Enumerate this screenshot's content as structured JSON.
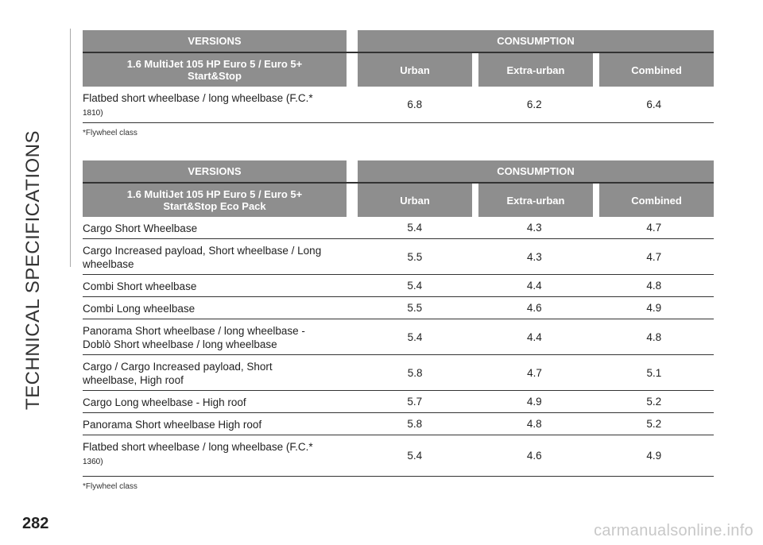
{
  "side_title": "TECHNICAL SPECIFICATIONS",
  "page_number": "282",
  "watermark": "carmanualsonline.info",
  "table1": {
    "versions_label": "VERSIONS",
    "consumption_label": "CONSUMPTION",
    "engine_label": "1.6 MultiJet 105 HP Euro 5 / Euro 5+ Start&Stop",
    "col_urban": "Urban",
    "col_extra": "Extra-urban",
    "col_combined": "Combined",
    "rows": [
      {
        "label": "Flatbed short wheelbase / long wheelbase (F.C.*",
        "label_small": "1810)",
        "urban": "6.8",
        "extra": "6.2",
        "combined": "6.4"
      }
    ],
    "footnote": "*Flywheel class"
  },
  "table2": {
    "versions_label": "VERSIONS",
    "consumption_label": "CONSUMPTION",
    "engine_label": "1.6 MultiJet 105 HP Euro 5 / Euro 5+ Start&Stop Eco Pack",
    "col_urban": "Urban",
    "col_extra": "Extra-urban",
    "col_combined": "Combined",
    "rows": [
      {
        "label": "Cargo Short Wheelbase",
        "urban": "5.4",
        "extra": "4.3",
        "combined": "4.7"
      },
      {
        "label": "Cargo Increased payload, Short wheelbase / Long wheelbase",
        "urban": "5.5",
        "extra": "4.3",
        "combined": "4.7"
      },
      {
        "label": "Combi Short wheelbase",
        "urban": "5.4",
        "extra": "4.4",
        "combined": "4.8"
      },
      {
        "label": "Combi Long wheelbase",
        "urban": "5.5",
        "extra": "4.6",
        "combined": "4.9"
      },
      {
        "label": "Panorama Short wheelbase / long wheelbase - Doblò Short wheelbase / long wheelbase",
        "urban": "5.4",
        "extra": "4.4",
        "combined": "4.8"
      },
      {
        "label": "Cargo / Cargo Increased payload, Short wheelbase, High roof",
        "urban": "5.8",
        "extra": "4.7",
        "combined": "5.1"
      },
      {
        "label": "Cargo Long wheelbase - High roof",
        "urban": "5.7",
        "extra": "4.9",
        "combined": "5.2"
      },
      {
        "label": "Panorama Short wheelbase High roof",
        "urban": "5.8",
        "extra": "4.8",
        "combined": "5.2"
      },
      {
        "label": "Flatbed short wheelbase / long wheelbase (F.C.*",
        "label_small": "1360)",
        "urban": "5.4",
        "extra": "4.6",
        "combined": "4.9"
      }
    ],
    "footnote": "*Flywheel class"
  }
}
